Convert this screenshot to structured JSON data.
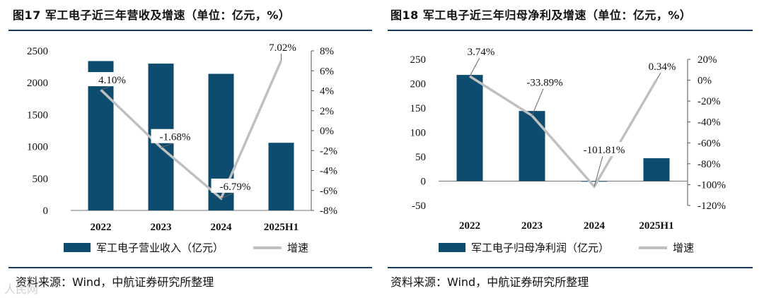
{
  "left": {
    "title": "图17  军工电子近三年营收及增速（单位：亿元，%）",
    "legend_bar": "军工电子营业收入（亿元）",
    "legend_line": "增速",
    "source": "资料来源：Wind，中航证券研究所整理"
  },
  "right": {
    "title": "图18  军工电子近三年归母净利及增速（单位：亿元，%）",
    "legend_bar": "军工电子归母净利润（亿元）",
    "legend_line": "增速",
    "source": "资料来源：Wind，中航证券研究所整理"
  },
  "watermark": "人民网",
  "colors": {
    "bar": "#0d4c6e",
    "line": "#c0c0c0",
    "rule": "#1f3a5f"
  },
  "chart_data": [
    {
      "type": "bar",
      "title": "军工电子近三年营收及增速",
      "categories": [
        "2022",
        "2023",
        "2024",
        "2025H1"
      ],
      "series": [
        {
          "name": "军工电子营业收入（亿元）",
          "axis": "left",
          "kind": "bar",
          "values": [
            2340,
            2300,
            2140,
            1060
          ]
        },
        {
          "name": "增速",
          "axis": "right",
          "kind": "line",
          "values": [
            4.1,
            -1.68,
            -6.79,
            7.02
          ]
        }
      ],
      "data_labels": [
        "4.10%",
        "-1.68%",
        "-6.79%",
        "7.02%"
      ],
      "y_left": {
        "min": 0,
        "max": 2500,
        "step": 500,
        "ticks": [
          "0",
          "500",
          "1000",
          "1500",
          "2000",
          "2500"
        ]
      },
      "y_right": {
        "min": -8,
        "max": 8,
        "step": 2,
        "ticks": [
          "-8%",
          "-6%",
          "-4%",
          "-2%",
          "0%",
          "2%",
          "4%",
          "6%",
          "8%"
        ]
      }
    },
    {
      "type": "bar",
      "title": "军工电子近三年归母净利及增速",
      "categories": [
        "2022",
        "2023",
        "2024",
        "2025H1"
      ],
      "series": [
        {
          "name": "军工电子归母净利润（亿元）",
          "axis": "left",
          "kind": "bar",
          "values": [
            218,
            144,
            -1,
            47
          ]
        },
        {
          "name": "增速",
          "axis": "right",
          "kind": "line",
          "values": [
            3.74,
            -33.89,
            -101.81,
            0.34
          ]
        }
      ],
      "data_labels": [
        "3.74%",
        "-33.89%",
        "-101.81%",
        "0.34%"
      ],
      "y_left": {
        "min": -50,
        "max": 250,
        "step": 50,
        "ticks": [
          "-50",
          "0",
          "50",
          "100",
          "150",
          "200",
          "250"
        ]
      },
      "y_right": {
        "min": -120,
        "max": 20,
        "step": 20,
        "ticks": [
          "-120%",
          "-100%",
          "-80%",
          "-60%",
          "-40%",
          "-20%",
          "0%",
          "20%"
        ]
      }
    }
  ]
}
